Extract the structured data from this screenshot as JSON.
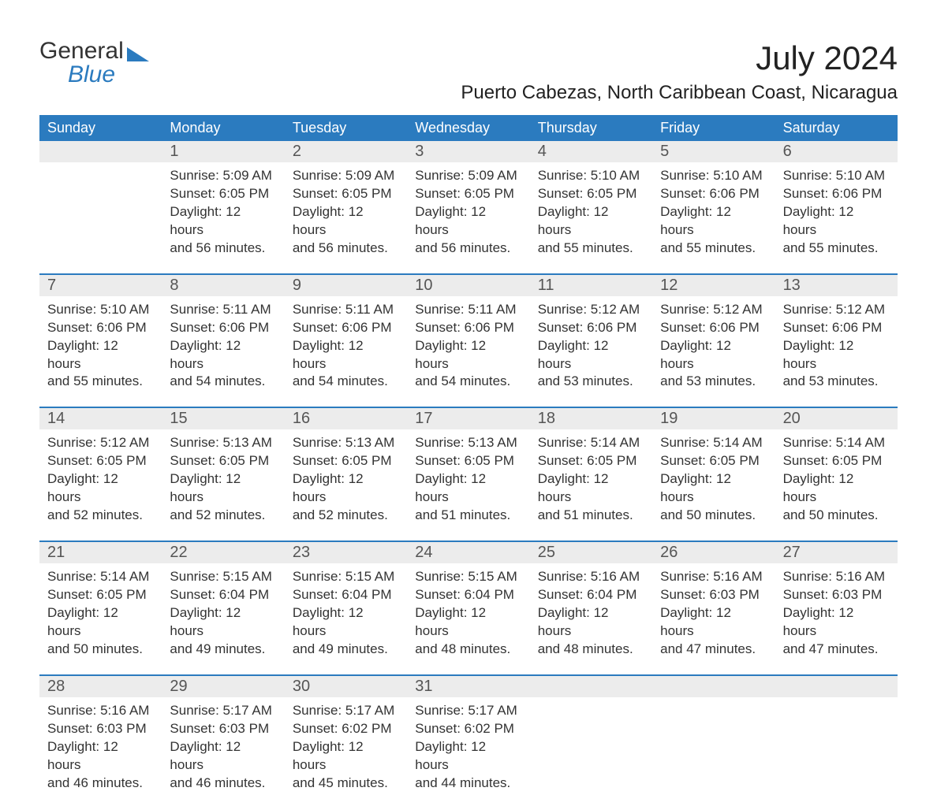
{
  "logo": {
    "text1": "General",
    "text2": "Blue"
  },
  "title": "July 2024",
  "location": "Puerto Cabezas, North Caribbean Coast, Nicaragua",
  "colors": {
    "header_bg": "#2b7bbf",
    "header_text": "#ffffff",
    "daynum_bg": "#ececec",
    "row_border": "#2b7bbf",
    "logo_blue": "#2b7bbf",
    "body_text": "#333333",
    "background": "#ffffff"
  },
  "typography": {
    "month_title_fontsize": 42,
    "location_fontsize": 24,
    "dow_fontsize": 18,
    "daynum_fontsize": 20,
    "body_fontsize": 17
  },
  "days_of_week": [
    "Sunday",
    "Monday",
    "Tuesday",
    "Wednesday",
    "Thursday",
    "Friday",
    "Saturday"
  ],
  "weeks": [
    [
      {
        "num": "",
        "lines": []
      },
      {
        "num": "1",
        "lines": [
          "Sunrise: 5:09 AM",
          "Sunset: 6:05 PM",
          "Daylight: 12 hours",
          "and 56 minutes."
        ]
      },
      {
        "num": "2",
        "lines": [
          "Sunrise: 5:09 AM",
          "Sunset: 6:05 PM",
          "Daylight: 12 hours",
          "and 56 minutes."
        ]
      },
      {
        "num": "3",
        "lines": [
          "Sunrise: 5:09 AM",
          "Sunset: 6:05 PM",
          "Daylight: 12 hours",
          "and 56 minutes."
        ]
      },
      {
        "num": "4",
        "lines": [
          "Sunrise: 5:10 AM",
          "Sunset: 6:05 PM",
          "Daylight: 12 hours",
          "and 55 minutes."
        ]
      },
      {
        "num": "5",
        "lines": [
          "Sunrise: 5:10 AM",
          "Sunset: 6:06 PM",
          "Daylight: 12 hours",
          "and 55 minutes."
        ]
      },
      {
        "num": "6",
        "lines": [
          "Sunrise: 5:10 AM",
          "Sunset: 6:06 PM",
          "Daylight: 12 hours",
          "and 55 minutes."
        ]
      }
    ],
    [
      {
        "num": "7",
        "lines": [
          "Sunrise: 5:10 AM",
          "Sunset: 6:06 PM",
          "Daylight: 12 hours",
          "and 55 minutes."
        ]
      },
      {
        "num": "8",
        "lines": [
          "Sunrise: 5:11 AM",
          "Sunset: 6:06 PM",
          "Daylight: 12 hours",
          "and 54 minutes."
        ]
      },
      {
        "num": "9",
        "lines": [
          "Sunrise: 5:11 AM",
          "Sunset: 6:06 PM",
          "Daylight: 12 hours",
          "and 54 minutes."
        ]
      },
      {
        "num": "10",
        "lines": [
          "Sunrise: 5:11 AM",
          "Sunset: 6:06 PM",
          "Daylight: 12 hours",
          "and 54 minutes."
        ]
      },
      {
        "num": "11",
        "lines": [
          "Sunrise: 5:12 AM",
          "Sunset: 6:06 PM",
          "Daylight: 12 hours",
          "and 53 minutes."
        ]
      },
      {
        "num": "12",
        "lines": [
          "Sunrise: 5:12 AM",
          "Sunset: 6:06 PM",
          "Daylight: 12 hours",
          "and 53 minutes."
        ]
      },
      {
        "num": "13",
        "lines": [
          "Sunrise: 5:12 AM",
          "Sunset: 6:06 PM",
          "Daylight: 12 hours",
          "and 53 minutes."
        ]
      }
    ],
    [
      {
        "num": "14",
        "lines": [
          "Sunrise: 5:12 AM",
          "Sunset: 6:05 PM",
          "Daylight: 12 hours",
          "and 52 minutes."
        ]
      },
      {
        "num": "15",
        "lines": [
          "Sunrise: 5:13 AM",
          "Sunset: 6:05 PM",
          "Daylight: 12 hours",
          "and 52 minutes."
        ]
      },
      {
        "num": "16",
        "lines": [
          "Sunrise: 5:13 AM",
          "Sunset: 6:05 PM",
          "Daylight: 12 hours",
          "and 52 minutes."
        ]
      },
      {
        "num": "17",
        "lines": [
          "Sunrise: 5:13 AM",
          "Sunset: 6:05 PM",
          "Daylight: 12 hours",
          "and 51 minutes."
        ]
      },
      {
        "num": "18",
        "lines": [
          "Sunrise: 5:14 AM",
          "Sunset: 6:05 PM",
          "Daylight: 12 hours",
          "and 51 minutes."
        ]
      },
      {
        "num": "19",
        "lines": [
          "Sunrise: 5:14 AM",
          "Sunset: 6:05 PM",
          "Daylight: 12 hours",
          "and 50 minutes."
        ]
      },
      {
        "num": "20",
        "lines": [
          "Sunrise: 5:14 AM",
          "Sunset: 6:05 PM",
          "Daylight: 12 hours",
          "and 50 minutes."
        ]
      }
    ],
    [
      {
        "num": "21",
        "lines": [
          "Sunrise: 5:14 AM",
          "Sunset: 6:05 PM",
          "Daylight: 12 hours",
          "and 50 minutes."
        ]
      },
      {
        "num": "22",
        "lines": [
          "Sunrise: 5:15 AM",
          "Sunset: 6:04 PM",
          "Daylight: 12 hours",
          "and 49 minutes."
        ]
      },
      {
        "num": "23",
        "lines": [
          "Sunrise: 5:15 AM",
          "Sunset: 6:04 PM",
          "Daylight: 12 hours",
          "and 49 minutes."
        ]
      },
      {
        "num": "24",
        "lines": [
          "Sunrise: 5:15 AM",
          "Sunset: 6:04 PM",
          "Daylight: 12 hours",
          "and 48 minutes."
        ]
      },
      {
        "num": "25",
        "lines": [
          "Sunrise: 5:16 AM",
          "Sunset: 6:04 PM",
          "Daylight: 12 hours",
          "and 48 minutes."
        ]
      },
      {
        "num": "26",
        "lines": [
          "Sunrise: 5:16 AM",
          "Sunset: 6:03 PM",
          "Daylight: 12 hours",
          "and 47 minutes."
        ]
      },
      {
        "num": "27",
        "lines": [
          "Sunrise: 5:16 AM",
          "Sunset: 6:03 PM",
          "Daylight: 12 hours",
          "and 47 minutes."
        ]
      }
    ],
    [
      {
        "num": "28",
        "lines": [
          "Sunrise: 5:16 AM",
          "Sunset: 6:03 PM",
          "Daylight: 12 hours",
          "and 46 minutes."
        ]
      },
      {
        "num": "29",
        "lines": [
          "Sunrise: 5:17 AM",
          "Sunset: 6:03 PM",
          "Daylight: 12 hours",
          "and 46 minutes."
        ]
      },
      {
        "num": "30",
        "lines": [
          "Sunrise: 5:17 AM",
          "Sunset: 6:02 PM",
          "Daylight: 12 hours",
          "and 45 minutes."
        ]
      },
      {
        "num": "31",
        "lines": [
          "Sunrise: 5:17 AM",
          "Sunset: 6:02 PM",
          "Daylight: 12 hours",
          "and 44 minutes."
        ]
      },
      {
        "num": "",
        "lines": []
      },
      {
        "num": "",
        "lines": []
      },
      {
        "num": "",
        "lines": []
      }
    ]
  ]
}
